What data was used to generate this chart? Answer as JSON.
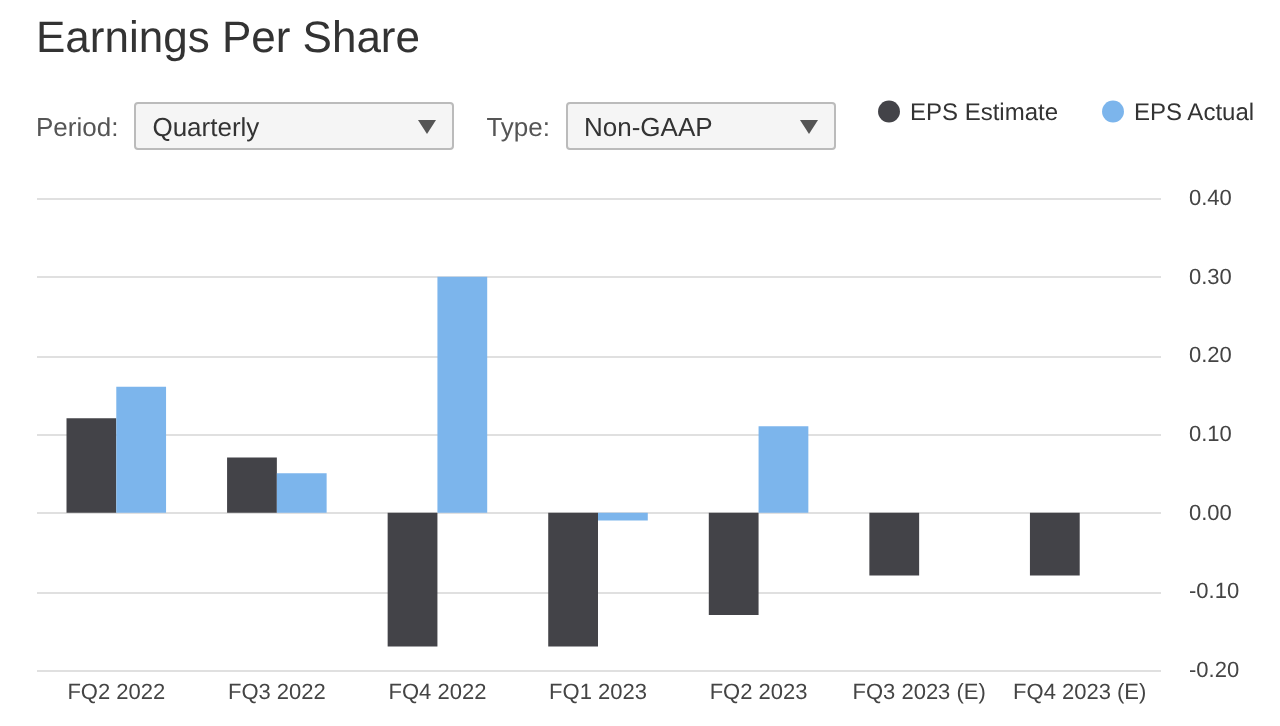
{
  "chart_data": {
    "type": "bar",
    "title": "Earnings Per Share",
    "annotations": [
      "Period:",
      "Quarterly",
      "Type:",
      "Non-GAAP"
    ],
    "categories": [
      "FQ2 2022",
      "FQ3 2022",
      "FQ4 2022",
      "FQ1 2023",
      "FQ2 2023",
      "FQ3 2023 (E)",
      "FQ4 2023 (E)"
    ],
    "series": [
      {
        "name": "EPS Estimate",
        "color": "#434348",
        "values": [
          0.12,
          0.07,
          -0.17,
          -0.17,
          -0.13,
          -0.08,
          -0.08
        ]
      },
      {
        "name": "EPS Actual",
        "color": "#7cb5ec",
        "values": [
          0.16,
          0.05,
          0.3,
          -0.01,
          0.11,
          null,
          null
        ]
      }
    ],
    "ylim": [
      -0.2,
      0.4
    ],
    "yticks": [
      {
        "value": -0.2,
        "label": "-0.20"
      },
      {
        "value": -0.1,
        "label": "-0.10"
      },
      {
        "value": 0,
        "label": "0.00"
      },
      {
        "value": 0.1,
        "label": "0.10"
      },
      {
        "value": 0.2,
        "label": "0.20"
      },
      {
        "value": 0.3,
        "label": "0.30"
      },
      {
        "value": 0.4,
        "label": "0.40"
      }
    ],
    "grid": "y",
    "legend": "top right"
  }
}
